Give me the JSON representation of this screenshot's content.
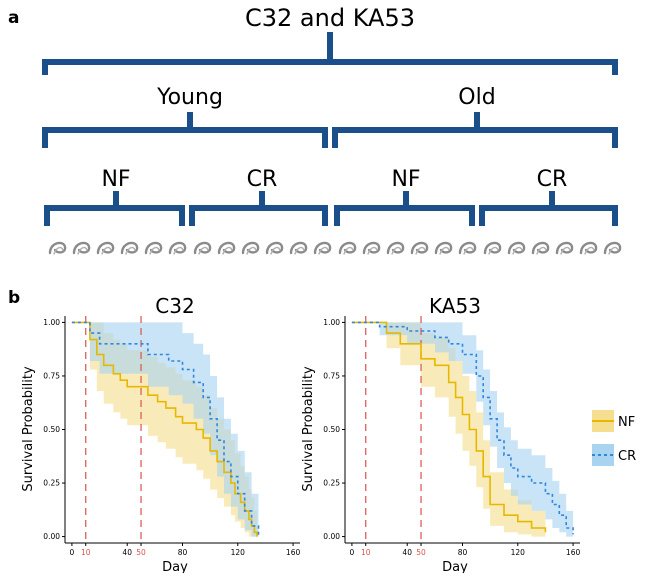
{
  "panel_a": {
    "letter": "a",
    "root": "C32 and KA53",
    "age_groups": [
      "Young",
      "Old"
    ],
    "diet_groups": [
      "NF",
      "CR",
      "NF",
      "CR"
    ],
    "worms_per_group": 6,
    "colors": {
      "bracket": "#1b4f8a",
      "worm": "#8a8a8a"
    }
  },
  "panel_b": {
    "letter": "b",
    "legend": [
      {
        "label": "NF",
        "color": "#e6b800",
        "fill": "#f5df8e",
        "style": "solid"
      },
      {
        "label": "CR",
        "color": "#2e86de",
        "fill": "#a8d4f0",
        "style": "dashed"
      }
    ],
    "vlines": [
      10,
      50
    ],
    "vline_color": "#d9534f"
  },
  "chart_data": [
    {
      "type": "line",
      "title": "C32",
      "xlabel": "Day",
      "ylabel": "Survival Probability",
      "xlim": [
        -5,
        165
      ],
      "ylim": [
        -0.03,
        1.03
      ],
      "x_ticks": [
        0,
        10,
        40,
        50,
        80,
        120,
        160
      ],
      "x_ticks_red": [
        10,
        50
      ],
      "y_ticks": [
        0.0,
        0.25,
        0.5,
        0.75,
        1.0
      ],
      "y_tick_labels": [
        "0.00",
        "0.25",
        "0.50",
        "0.75",
        "1.00"
      ],
      "series": [
        {
          "name": "NF",
          "x": [
            0,
            13,
            18,
            23,
            30,
            35,
            40,
            48,
            55,
            62,
            68,
            75,
            80,
            85,
            90,
            95,
            100,
            105,
            110,
            115,
            118,
            122,
            125,
            128,
            130,
            132,
            134
          ],
          "y": [
            1.0,
            0.92,
            0.85,
            0.8,
            0.76,
            0.73,
            0.7,
            0.7,
            0.66,
            0.63,
            0.6,
            0.56,
            0.53,
            0.53,
            0.5,
            0.46,
            0.4,
            0.35,
            0.3,
            0.25,
            0.2,
            0.16,
            0.12,
            0.08,
            0.05,
            0.02,
            0.0
          ],
          "lower": [
            1.0,
            0.78,
            0.68,
            0.62,
            0.58,
            0.55,
            0.52,
            0.52,
            0.47,
            0.44,
            0.41,
            0.37,
            0.34,
            0.34,
            0.31,
            0.27,
            0.22,
            0.18,
            0.14,
            0.1,
            0.07,
            0.04,
            0.02,
            0.0,
            0.0,
            0.0,
            0.0
          ],
          "upper": [
            1.0,
            1.0,
            1.0,
            0.95,
            0.92,
            0.9,
            0.87,
            0.87,
            0.84,
            0.81,
            0.79,
            0.76,
            0.73,
            0.73,
            0.7,
            0.66,
            0.6,
            0.55,
            0.5,
            0.45,
            0.39,
            0.33,
            0.28,
            0.22,
            0.18,
            0.12,
            0.08
          ]
        },
        {
          "name": "CR",
          "x": [
            0,
            13,
            20,
            28,
            50,
            55,
            70,
            80,
            88,
            95,
            100,
            105,
            110,
            115,
            120,
            125,
            130,
            135
          ],
          "y": [
            1.0,
            0.95,
            0.9,
            0.9,
            0.9,
            0.85,
            0.82,
            0.78,
            0.72,
            0.65,
            0.55,
            0.45,
            0.35,
            0.28,
            0.2,
            0.12,
            0.05,
            0.0
          ],
          "lower": [
            1.0,
            0.82,
            0.76,
            0.76,
            0.76,
            0.7,
            0.66,
            0.62,
            0.55,
            0.48,
            0.38,
            0.28,
            0.2,
            0.14,
            0.08,
            0.03,
            0.0,
            0.0
          ],
          "upper": [
            1.0,
            1.0,
            1.0,
            1.0,
            1.0,
            1.0,
            1.0,
            0.95,
            0.9,
            0.85,
            0.75,
            0.65,
            0.55,
            0.48,
            0.4,
            0.3,
            0.2,
            0.1
          ]
        }
      ]
    },
    {
      "type": "line",
      "title": "KA53",
      "xlabel": "Day",
      "ylabel": "Survival Probability",
      "xlim": [
        -5,
        165
      ],
      "ylim": [
        -0.03,
        1.03
      ],
      "x_ticks": [
        0,
        10,
        40,
        50,
        80,
        120,
        160
      ],
      "x_ticks_red": [
        10,
        50
      ],
      "y_ticks": [
        0.0,
        0.25,
        0.5,
        0.75,
        1.0
      ],
      "y_tick_labels": [
        "0.00",
        "0.25",
        "0.50",
        "0.75",
        "1.00"
      ],
      "series": [
        {
          "name": "NF",
          "x": [
            0,
            25,
            35,
            50,
            60,
            70,
            75,
            80,
            85,
            90,
            95,
            100,
            110,
            120,
            130,
            140
          ],
          "y": [
            1.0,
            0.95,
            0.9,
            0.83,
            0.8,
            0.72,
            0.65,
            0.57,
            0.5,
            0.4,
            0.28,
            0.15,
            0.1,
            0.07,
            0.04,
            0.02
          ],
          "lower": [
            1.0,
            0.88,
            0.8,
            0.7,
            0.65,
            0.56,
            0.48,
            0.4,
            0.33,
            0.23,
            0.13,
            0.05,
            0.02,
            0.01,
            0.0,
            0.0
          ],
          "upper": [
            1.0,
            1.0,
            1.0,
            0.95,
            0.93,
            0.88,
            0.82,
            0.75,
            0.68,
            0.58,
            0.45,
            0.3,
            0.22,
            0.17,
            0.12,
            0.08
          ]
        },
        {
          "name": "CR",
          "x": [
            0,
            20,
            40,
            60,
            70,
            80,
            90,
            95,
            100,
            105,
            110,
            115,
            120,
            130,
            140,
            145,
            150,
            155,
            160
          ],
          "y": [
            1.0,
            0.98,
            0.96,
            0.93,
            0.9,
            0.85,
            0.75,
            0.65,
            0.55,
            0.45,
            0.38,
            0.32,
            0.28,
            0.25,
            0.2,
            0.15,
            0.1,
            0.04,
            0.01
          ],
          "lower": [
            1.0,
            0.94,
            0.9,
            0.86,
            0.82,
            0.76,
            0.63,
            0.52,
            0.42,
            0.32,
            0.25,
            0.19,
            0.15,
            0.12,
            0.08,
            0.04,
            0.02,
            0.0,
            0.0
          ],
          "upper": [
            1.0,
            1.0,
            1.0,
            1.0,
            1.0,
            0.94,
            0.87,
            0.78,
            0.68,
            0.58,
            0.51,
            0.45,
            0.41,
            0.38,
            0.32,
            0.26,
            0.2,
            0.12,
            0.05
          ]
        }
      ]
    }
  ]
}
